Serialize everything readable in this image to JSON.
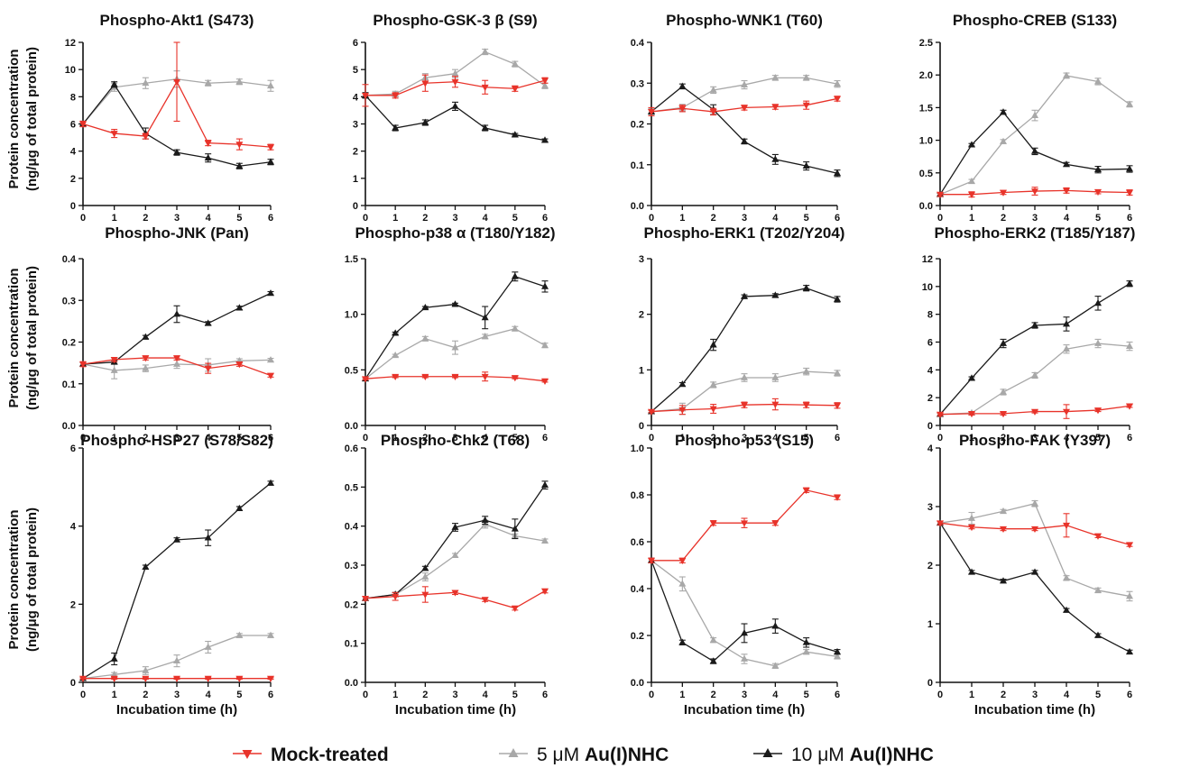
{
  "chart_data": [
    {
      "type": "line",
      "title": "Phospho-Akt1 (S473)",
      "ylim": [
        0,
        12
      ],
      "yticks": [
        0,
        2,
        4,
        6,
        8,
        10,
        12
      ],
      "x": [
        0,
        1,
        2,
        3,
        4,
        5,
        6
      ],
      "series": [
        {
          "name": "Mock-treated",
          "values": [
            6.0,
            5.3,
            5.1,
            9.1,
            4.6,
            4.5,
            4.3
          ],
          "err": [
            0.2,
            0.3,
            0.2,
            2.9,
            0.2,
            0.4,
            0.2
          ]
        },
        {
          "name": "5 μM Au(I)NHC",
          "values": [
            6.0,
            8.7,
            9.0,
            9.3,
            9.0,
            9.1,
            8.8
          ],
          "err": [
            0.2,
            0.3,
            0.4,
            0.6,
            0.2,
            0.2,
            0.4
          ]
        },
        {
          "name": "10 μM Au(I)NHC",
          "values": [
            6.0,
            8.9,
            5.3,
            3.9,
            3.5,
            2.9,
            3.2
          ],
          "err": [
            0.2,
            0.2,
            0.4,
            0.2,
            0.3,
            0.2,
            0.2
          ]
        }
      ]
    },
    {
      "type": "line",
      "title": "Phospho-GSK-3 β (S9)",
      "ylim": [
        0,
        6
      ],
      "yticks": [
        0,
        1,
        2,
        3,
        4,
        5,
        6
      ],
      "x": [
        0,
        1,
        2,
        3,
        4,
        5,
        6
      ],
      "series": [
        {
          "name": "Mock-treated",
          "values": [
            4.05,
            4.05,
            4.5,
            4.55,
            4.35,
            4.3,
            4.6
          ],
          "err": [
            0.4,
            0.1,
            0.3,
            0.2,
            0.25,
            0.1,
            0.1
          ]
        },
        {
          "name": "5 μM Au(I)NHC",
          "values": [
            4.05,
            4.1,
            4.7,
            4.85,
            5.65,
            5.2,
            4.4
          ],
          "err": [
            0.1,
            0.1,
            0.15,
            0.15,
            0.1,
            0.1,
            0.1
          ]
        },
        {
          "name": "10 μM Au(I)NHC",
          "values": [
            4.05,
            2.85,
            3.05,
            3.65,
            2.85,
            2.6,
            2.4
          ],
          "err": [
            0.1,
            0.1,
            0.1,
            0.15,
            0.1,
            0.05,
            0.05
          ]
        }
      ]
    },
    {
      "type": "line",
      "title": "Phospho-WNK1 (T60)",
      "ylim": [
        0,
        0.4
      ],
      "yticks": [
        0.0,
        0.1,
        0.2,
        0.3,
        0.4
      ],
      "x": [
        0,
        1,
        2,
        3,
        4,
        5,
        6
      ],
      "series": [
        {
          "name": "Mock-treated",
          "values": [
            0.23,
            0.238,
            0.23,
            0.24,
            0.242,
            0.246,
            0.262
          ],
          "err": [
            0.01,
            0.008,
            0.008,
            0.006,
            0.006,
            0.01,
            0.006
          ]
        },
        {
          "name": "5 μM Au(I)NHC",
          "values": [
            0.23,
            0.24,
            0.283,
            0.296,
            0.313,
            0.313,
            0.298
          ],
          "err": [
            0.006,
            0.008,
            0.008,
            0.01,
            0.006,
            0.006,
            0.008
          ]
        },
        {
          "name": "10 μM Au(I)NHC",
          "values": [
            0.23,
            0.292,
            0.235,
            0.157,
            0.113,
            0.097,
            0.079
          ],
          "err": [
            0.006,
            0.006,
            0.012,
            0.006,
            0.012,
            0.01,
            0.008
          ]
        }
      ]
    },
    {
      "type": "line",
      "title": "Phospho-CREB (S133)",
      "ylim": [
        0,
        2.5
      ],
      "yticks": [
        0.0,
        0.5,
        1.0,
        1.5,
        2.0,
        2.5
      ],
      "x": [
        0,
        1,
        2,
        3,
        4,
        5,
        6
      ],
      "series": [
        {
          "name": "Mock-treated",
          "values": [
            0.17,
            0.17,
            0.2,
            0.22,
            0.23,
            0.21,
            0.2
          ],
          "err": [
            0.03,
            0.04,
            0.03,
            0.06,
            0.04,
            0.03,
            0.04
          ]
        },
        {
          "name": "5 μM Au(I)NHC",
          "values": [
            0.17,
            0.37,
            0.98,
            1.38,
            1.99,
            1.9,
            1.55
          ],
          "err": [
            0.02,
            0.03,
            0.03,
            0.08,
            0.04,
            0.05,
            0.04
          ]
        },
        {
          "name": "10 μM Au(I)NHC",
          "values": [
            0.17,
            0.93,
            1.43,
            0.83,
            0.63,
            0.55,
            0.56
          ],
          "err": [
            0.02,
            0.02,
            0.03,
            0.05,
            0.03,
            0.05,
            0.05
          ]
        }
      ]
    },
    {
      "type": "line",
      "title": "Phospho-JNK (Pan)",
      "ylim": [
        0,
        0.4
      ],
      "yticks": [
        0.0,
        0.1,
        0.2,
        0.3,
        0.4
      ],
      "x": [
        0,
        1,
        2,
        3,
        4,
        5,
        6
      ],
      "series": [
        {
          "name": "Mock-treated",
          "values": [
            0.147,
            0.158,
            0.162,
            0.162,
            0.137,
            0.147,
            0.12
          ],
          "err": [
            0.006,
            0.005,
            0.005,
            0.005,
            0.012,
            0.005,
            0.004
          ]
        },
        {
          "name": "5 μM Au(I)NHC",
          "values": [
            0.147,
            0.132,
            0.137,
            0.147,
            0.145,
            0.155,
            0.157
          ],
          "err": [
            0.005,
            0.02,
            0.008,
            0.01,
            0.015,
            0.005,
            0.004
          ]
        },
        {
          "name": "10 μM Au(I)NHC",
          "values": [
            0.147,
            0.152,
            0.212,
            0.267,
            0.245,
            0.282,
            0.317
          ],
          "err": [
            0.004,
            0.004,
            0.004,
            0.02,
            0.004,
            0.004,
            0.004
          ]
        }
      ]
    },
    {
      "type": "line",
      "title": "Phospho-p38 α (T180/Y182)",
      "ylim": [
        0,
        1.5
      ],
      "yticks": [
        0.0,
        0.5,
        1.0,
        1.5
      ],
      "x": [
        0,
        1,
        2,
        3,
        4,
        5,
        6
      ],
      "series": [
        {
          "name": "Mock-treated",
          "values": [
            0.42,
            0.44,
            0.44,
            0.44,
            0.44,
            0.43,
            0.4
          ],
          "err": [
            0.01,
            0.01,
            0.01,
            0.01,
            0.04,
            0.01,
            0.01
          ]
        },
        {
          "name": "5 μM Au(I)NHC",
          "values": [
            0.42,
            0.63,
            0.78,
            0.7,
            0.8,
            0.87,
            0.72
          ],
          "err": [
            0.01,
            0.01,
            0.02,
            0.06,
            0.02,
            0.02,
            0.02
          ]
        },
        {
          "name": "10 μM Au(I)NHC",
          "values": [
            0.42,
            0.83,
            1.06,
            1.09,
            0.97,
            1.34,
            1.25
          ],
          "err": [
            0.01,
            0.01,
            0.01,
            0.01,
            0.1,
            0.04,
            0.05
          ]
        }
      ]
    },
    {
      "type": "line",
      "title": "Phospho-ERK1 (T202/Y204)",
      "ylim": [
        0,
        3
      ],
      "yticks": [
        0,
        1,
        2,
        3
      ],
      "x": [
        0,
        1,
        2,
        3,
        4,
        5,
        6
      ],
      "series": [
        {
          "name": "Mock-treated",
          "values": [
            0.25,
            0.28,
            0.3,
            0.37,
            0.38,
            0.37,
            0.36
          ],
          "err": [
            0.02,
            0.08,
            0.08,
            0.05,
            0.1,
            0.05,
            0.05
          ]
        },
        {
          "name": "5 μM Au(I)NHC",
          "values": [
            0.25,
            0.3,
            0.73,
            0.86,
            0.86,
            0.97,
            0.94
          ],
          "err": [
            0.02,
            0.1,
            0.05,
            0.07,
            0.07,
            0.06,
            0.05
          ]
        },
        {
          "name": "10 μM Au(I)NHC",
          "values": [
            0.25,
            0.74,
            1.45,
            2.32,
            2.34,
            2.47,
            2.27
          ],
          "err": [
            0.02,
            0.03,
            0.1,
            0.03,
            0.03,
            0.05,
            0.05
          ]
        }
      ]
    },
    {
      "type": "line",
      "title": "Phospho-ERK2 (T185/Y187)",
      "ylim": [
        0,
        12
      ],
      "yticks": [
        0,
        2,
        4,
        6,
        8,
        10,
        12
      ],
      "x": [
        0,
        1,
        2,
        3,
        4,
        5,
        6
      ],
      "series": [
        {
          "name": "Mock-treated",
          "values": [
            0.8,
            0.85,
            0.85,
            1.0,
            1.0,
            1.1,
            1.4
          ],
          "err": [
            0.1,
            0.1,
            0.1,
            0.1,
            0.5,
            0.1,
            0.1
          ]
        },
        {
          "name": "5 μM Au(I)NHC",
          "values": [
            0.8,
            0.9,
            2.4,
            3.6,
            5.5,
            5.9,
            5.7
          ],
          "err": [
            0.1,
            0.1,
            0.2,
            0.2,
            0.3,
            0.3,
            0.3
          ]
        },
        {
          "name": "10 μM Au(I)NHC",
          "values": [
            0.8,
            3.4,
            5.9,
            7.2,
            7.3,
            8.8,
            10.2
          ],
          "err": [
            0.1,
            0.1,
            0.3,
            0.2,
            0.5,
            0.5,
            0.2
          ]
        }
      ]
    },
    {
      "type": "line",
      "title": "Phospho-HSP27 (S78/S82)",
      "ylim": [
        0,
        6
      ],
      "yticks": [
        0,
        2,
        4,
        6
      ],
      "x": [
        0,
        1,
        2,
        3,
        4,
        5,
        6
      ],
      "series": [
        {
          "name": "Mock-treated",
          "values": [
            0.1,
            0.1,
            0.1,
            0.1,
            0.1,
            0.1,
            0.1
          ],
          "err": [
            0.02,
            0.02,
            0.02,
            0.02,
            0.02,
            0.02,
            0.02
          ]
        },
        {
          "name": "5 μM Au(I)NHC",
          "values": [
            0.1,
            0.2,
            0.3,
            0.55,
            0.9,
            1.2,
            1.2
          ],
          "err": [
            0.02,
            0.05,
            0.1,
            0.15,
            0.15,
            0.05,
            0.05
          ]
        },
        {
          "name": "10 μM Au(I)NHC",
          "values": [
            0.1,
            0.6,
            2.95,
            3.65,
            3.7,
            4.45,
            5.1
          ],
          "err": [
            0.02,
            0.15,
            0.05,
            0.05,
            0.2,
            0.05,
            0.05
          ]
        }
      ]
    },
    {
      "type": "line",
      "title": "Phospho-Chk2 (T68)",
      "ylim": [
        0,
        0.6
      ],
      "yticks": [
        0.0,
        0.1,
        0.2,
        0.3,
        0.4,
        0.5,
        0.6
      ],
      "x": [
        0,
        1,
        2,
        3,
        4,
        5,
        6
      ],
      "series": [
        {
          "name": "Mock-treated",
          "values": [
            0.215,
            0.22,
            0.225,
            0.23,
            0.212,
            0.19,
            0.234
          ],
          "err": [
            0.005,
            0.01,
            0.02,
            0.005,
            0.005,
            0.005,
            0.005
          ]
        },
        {
          "name": "5 μM Au(I)NHC",
          "values": [
            0.215,
            0.225,
            0.27,
            0.325,
            0.405,
            0.375,
            0.362
          ],
          "err": [
            0.005,
            0.005,
            0.01,
            0.005,
            0.01,
            0.005,
            0.005
          ]
        },
        {
          "name": "10 μM Au(I)NHC",
          "values": [
            0.215,
            0.225,
            0.292,
            0.397,
            0.415,
            0.393,
            0.505
          ],
          "err": [
            0.005,
            0.005,
            0.005,
            0.01,
            0.01,
            0.025,
            0.01
          ]
        }
      ]
    },
    {
      "type": "line",
      "title": "Phospho-p53 (S15)",
      "ylim": [
        0,
        1.0
      ],
      "yticks": [
        0.0,
        0.2,
        0.4,
        0.6,
        0.8,
        1.0
      ],
      "x": [
        0,
        1,
        2,
        3,
        4,
        5,
        6
      ],
      "series": [
        {
          "name": "Mock-treated",
          "values": [
            0.52,
            0.52,
            0.68,
            0.68,
            0.68,
            0.82,
            0.79
          ],
          "err": [
            0.01,
            0.01,
            0.01,
            0.02,
            0.01,
            0.01,
            0.01
          ]
        },
        {
          "name": "5 μM Au(I)NHC",
          "values": [
            0.52,
            0.42,
            0.18,
            0.1,
            0.07,
            0.13,
            0.11
          ],
          "err": [
            0.01,
            0.03,
            0.01,
            0.02,
            0.01,
            0.01,
            0.01
          ]
        },
        {
          "name": "10 μM Au(I)NHC",
          "values": [
            0.52,
            0.17,
            0.09,
            0.21,
            0.24,
            0.17,
            0.13
          ],
          "err": [
            0.01,
            0.01,
            0.01,
            0.04,
            0.03,
            0.02,
            0.01
          ]
        }
      ]
    },
    {
      "type": "line",
      "title": "Phospho-FAK (Y397)",
      "ylim": [
        0,
        4
      ],
      "yticks": [
        0,
        1,
        2,
        3,
        4
      ],
      "x": [
        0,
        1,
        2,
        3,
        4,
        5,
        6
      ],
      "series": [
        {
          "name": "Mock-treated",
          "values": [
            2.72,
            2.65,
            2.62,
            2.62,
            2.68,
            2.5,
            2.35
          ],
          "err": [
            0.03,
            0.03,
            0.03,
            0.03,
            0.2,
            0.03,
            0.03
          ]
        },
        {
          "name": "5 μM Au(I)NHC",
          "values": [
            2.72,
            2.8,
            2.92,
            3.05,
            1.78,
            1.57,
            1.47
          ],
          "err": [
            0.03,
            0.1,
            0.03,
            0.05,
            0.04,
            0.04,
            0.08
          ]
        },
        {
          "name": "10 μM Au(I)NHC",
          "values": [
            2.72,
            1.88,
            1.73,
            1.88,
            1.23,
            0.8,
            0.52
          ],
          "err": [
            0.03,
            0.03,
            0.03,
            0.03,
            0.03,
            0.03,
            0.03
          ]
        }
      ]
    }
  ],
  "axis_text": {
    "ylabel_line1": "Protein concentration",
    "ylabel_line2": "(ng/μg of total protein)",
    "xlabel": "Incubation time (h)"
  },
  "legend": [
    {
      "marker": "down-triangle",
      "color": "#e8332a",
      "label_parts": [
        {
          "text": "Mock-treated",
          "bold": true
        }
      ]
    },
    {
      "marker": "up-triangle",
      "color": "#a8a8a8",
      "label_parts": [
        {
          "text": "5 μM ",
          "bold": false
        },
        {
          "text": "Au(I)NHC",
          "bold": true
        }
      ]
    },
    {
      "marker": "up-triangle",
      "color": "#1a1a1a",
      "label_parts": [
        {
          "text": "10 μM ",
          "bold": false
        },
        {
          "text": "Au(I)NHC",
          "bold": true
        }
      ]
    }
  ],
  "colors": {
    "mock": "#e8332a",
    "low": "#a8a8a8",
    "high": "#1a1a1a",
    "axis": "#111111"
  }
}
